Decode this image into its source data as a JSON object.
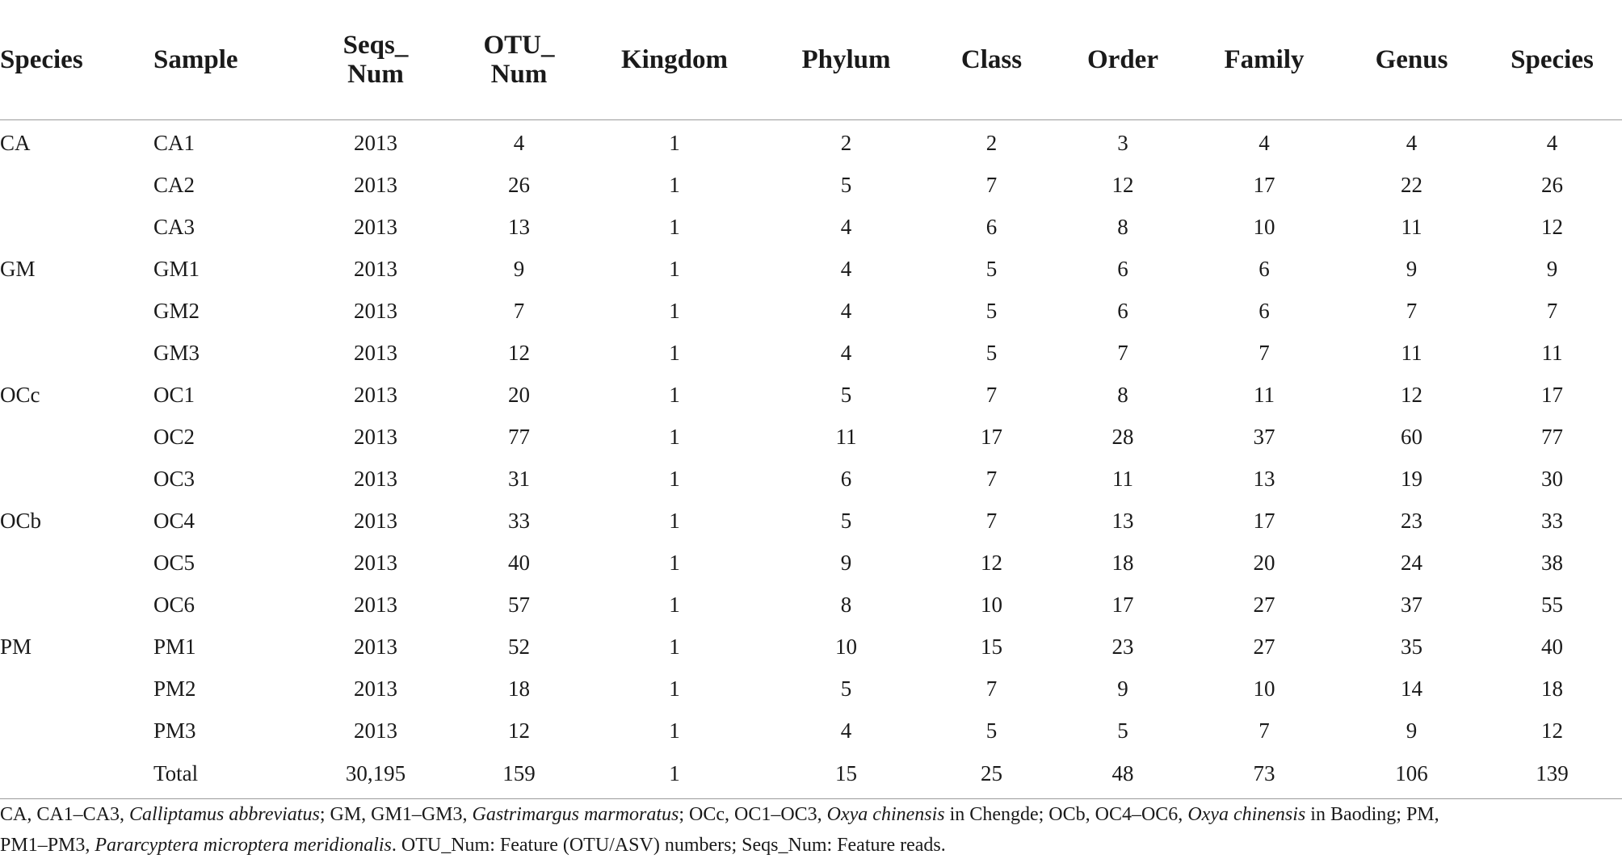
{
  "table": {
    "headers": [
      {
        "line1": "Species",
        "line2": ""
      },
      {
        "line1": "Sample",
        "line2": ""
      },
      {
        "line1": "Seqs_",
        "line2": "Num"
      },
      {
        "line1": "OTU_",
        "line2": "Num"
      },
      {
        "line1": "Kingdom",
        "line2": ""
      },
      {
        "line1": "Phylum",
        "line2": ""
      },
      {
        "line1": "Class",
        "line2": ""
      },
      {
        "line1": "Order",
        "line2": ""
      },
      {
        "line1": "Family",
        "line2": ""
      },
      {
        "line1": "Genus",
        "line2": ""
      },
      {
        "line1": "Species",
        "line2": ""
      }
    ],
    "rows": [
      [
        "CA",
        "CA1",
        "2013",
        "4",
        "1",
        "2",
        "2",
        "3",
        "4",
        "4",
        "4"
      ],
      [
        "",
        "CA2",
        "2013",
        "26",
        "1",
        "5",
        "7",
        "12",
        "17",
        "22",
        "26"
      ],
      [
        "",
        "CA3",
        "2013",
        "13",
        "1",
        "4",
        "6",
        "8",
        "10",
        "11",
        "12"
      ],
      [
        "GM",
        "GM1",
        "2013",
        "9",
        "1",
        "4",
        "5",
        "6",
        "6",
        "9",
        "9"
      ],
      [
        "",
        "GM2",
        "2013",
        "7",
        "1",
        "4",
        "5",
        "6",
        "6",
        "7",
        "7"
      ],
      [
        "",
        "GM3",
        "2013",
        "12",
        "1",
        "4",
        "5",
        "7",
        "7",
        "11",
        "11"
      ],
      [
        "OCc",
        "OC1",
        "2013",
        "20",
        "1",
        "5",
        "7",
        "8",
        "11",
        "12",
        "17"
      ],
      [
        "",
        "OC2",
        "2013",
        "77",
        "1",
        "11",
        "17",
        "28",
        "37",
        "60",
        "77"
      ],
      [
        "",
        "OC3",
        "2013",
        "31",
        "1",
        "6",
        "7",
        "11",
        "13",
        "19",
        "30"
      ],
      [
        "OCb",
        "OC4",
        "2013",
        "33",
        "1",
        "5",
        "7",
        "13",
        "17",
        "23",
        "33"
      ],
      [
        "",
        "OC5",
        "2013",
        "40",
        "1",
        "9",
        "12",
        "18",
        "20",
        "24",
        "38"
      ],
      [
        "",
        "OC6",
        "2013",
        "57",
        "1",
        "8",
        "10",
        "17",
        "27",
        "37",
        "55"
      ],
      [
        "PM",
        "PM1",
        "2013",
        "52",
        "1",
        "10",
        "15",
        "23",
        "27",
        "35",
        "40"
      ],
      [
        "",
        "PM2",
        "2013",
        "18",
        "1",
        "5",
        "7",
        "9",
        "10",
        "14",
        "18"
      ],
      [
        "",
        "PM3",
        "2013",
        "12",
        "1",
        "4",
        "5",
        "5",
        "7",
        "9",
        "12"
      ],
      [
        "",
        "Total",
        "30,195",
        "159",
        "1",
        "15",
        "25",
        "48",
        "73",
        "106",
        "139"
      ]
    ]
  },
  "footnote": {
    "p1": "CA, CA1–CA3, ",
    "ca_name": "Calliptamus abbreviatus",
    "p2": "; GM, GM1–GM3, ",
    "gm_name": "Gastrimargus marmoratus",
    "p3": "; OCc, OC1–OC3, ",
    "occ_name": "Oxya chinensis",
    "p4": " in Chengde; OCb, OC4–OC6, ",
    "ocb_name": "Oxya chinensis",
    "p5": " in Baoding; PM,",
    "p6": "PM1–PM3, ",
    "pm_name": "Pararcyptera microptera meridionalis",
    "p7": ". OTU_Num: Feature (OTU/ASV) numbers; Seqs_Num: Feature reads."
  }
}
